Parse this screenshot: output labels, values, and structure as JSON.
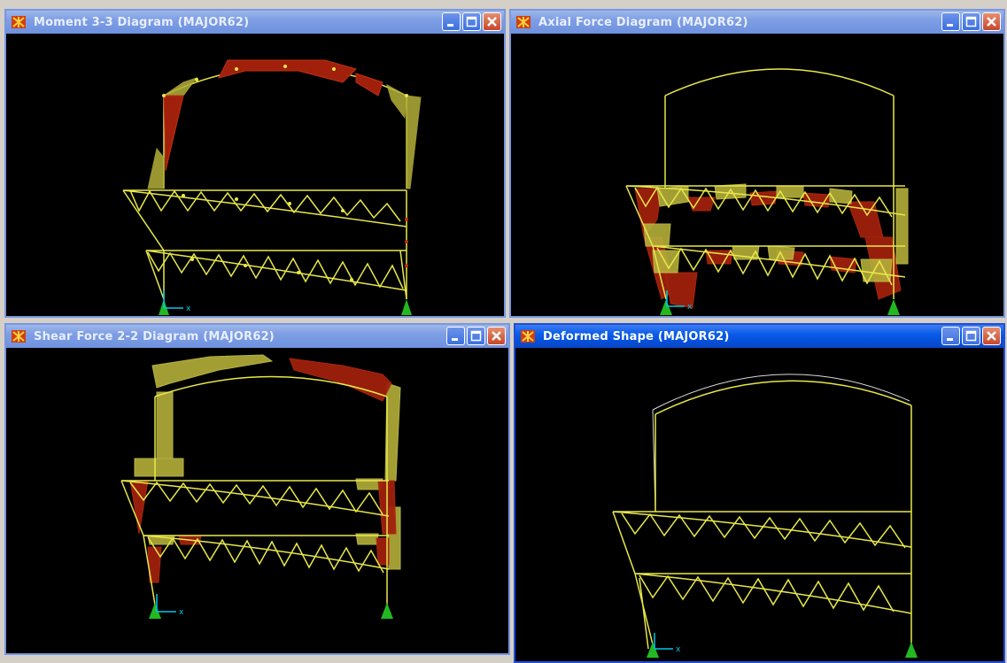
{
  "windows": [
    {
      "title": "Moment 3-3 Diagram   (MAJOR62)",
      "active": false
    },
    {
      "title": "Axial Force Diagram   (MAJOR62)",
      "active": false
    },
    {
      "title": "Shear Force 2-2 Diagram   (MAJOR62)",
      "active": false
    },
    {
      "title": "Deformed Shape (MAJOR62)",
      "active": true
    }
  ],
  "axis_label": "x",
  "colors": {
    "structure": "#e8e84a",
    "positive_diagram": "#b4b03a",
    "negative_diagram": "#a0200c",
    "support": "#22b822",
    "axis": "#00c8e8",
    "canvas": "#000000"
  },
  "icons": [
    "app-icon",
    "minimize-icon",
    "maximize-icon",
    "close-icon"
  ]
}
